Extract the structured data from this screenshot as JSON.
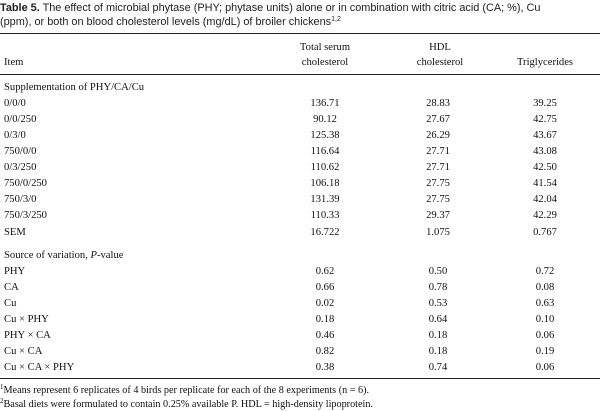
{
  "caption": {
    "label": "Table 5.",
    "text_line1": " The effect of microbial phytase (PHY; phytase units) alone or in combination with citric acid (CA; %), Cu",
    "text_line2": "(ppm), or both on blood cholesterol levels (mg/dL) of broiler chickens",
    "footnote_marks": "1,2"
  },
  "columns": {
    "item": "Item",
    "total_line1": "Total serum",
    "total_line2": "cholesterol",
    "hdl_line1": "HDL",
    "hdl_line2": "cholesterol",
    "trig": "Triglycerides"
  },
  "sections": {
    "supplementation": "Supplementation of PHY/CA/Cu",
    "source_prefix": "Source of variation, ",
    "source_p": "P",
    "source_suffix": "-value"
  },
  "treatments": [
    {
      "label": "0/0/0",
      "total": "136.71",
      "hdl": "28.83",
      "trig": "39.25"
    },
    {
      "label": "0/0/250",
      "total": "90.12",
      "hdl": "27.67",
      "trig": "42.75"
    },
    {
      "label": "0/3/0",
      "total": "125.38",
      "hdl": "26.29",
      "trig": "43.67"
    },
    {
      "label": "750/0/0",
      "total": "116.64",
      "hdl": "27.71",
      "trig": "43.08"
    },
    {
      "label": "0/3/250",
      "total": "110.62",
      "hdl": "27.71",
      "trig": "42.50"
    },
    {
      "label": "750/0/250",
      "total": "106.18",
      "hdl": "27.75",
      "trig": "41.54"
    },
    {
      "label": "750/3/0",
      "total": "131.39",
      "hdl": "27.75",
      "trig": "42.04"
    },
    {
      "label": "750/3/250",
      "total": "110.33",
      "hdl": "29.37",
      "trig": "42.29"
    }
  ],
  "sem": {
    "label": "SEM",
    "total": "16.722",
    "hdl": "1.075",
    "trig": "0.767"
  },
  "pvalues": [
    {
      "label": "PHY",
      "total": "0.62",
      "hdl": "0.50",
      "trig": "0.72"
    },
    {
      "label": "CA",
      "total": "0.66",
      "hdl": "0.78",
      "trig": "0.08"
    },
    {
      "label": "Cu",
      "total": "0.02",
      "hdl": "0.53",
      "trig": "0.63"
    },
    {
      "label": "Cu × PHY",
      "total": "0.18",
      "hdl": "0.64",
      "trig": "0.10"
    },
    {
      "label": "PHY × CA",
      "total": "0.46",
      "hdl": "0.18",
      "trig": "0.06"
    },
    {
      "label": "Cu × CA",
      "total": "0.82",
      "hdl": "0.18",
      "trig": "0.19"
    },
    {
      "label": "Cu × CA × PHY",
      "total": "0.38",
      "hdl": "0.74",
      "trig": "0.06"
    }
  ],
  "footnotes": [
    {
      "mark": "1",
      "text": "Means represent 6 replicates of 4 birds per replicate for each of the 8 experiments (n = 6)."
    },
    {
      "mark": "2",
      "text": "Basal diets were formulated to contain 0.25% available P. HDL = high-density lipoprotein."
    }
  ]
}
